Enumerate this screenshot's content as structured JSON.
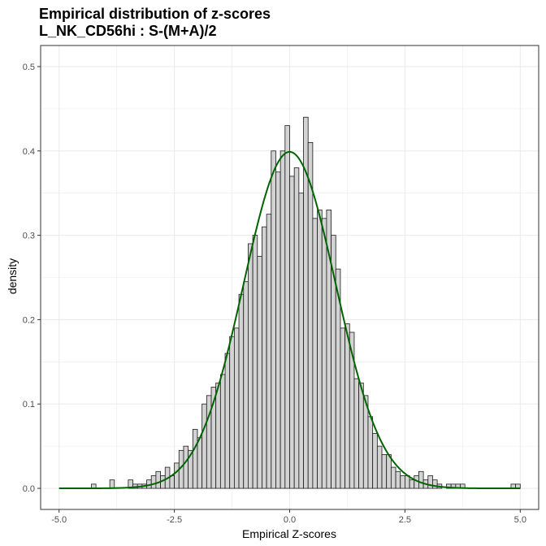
{
  "chart_data": {
    "type": "bar",
    "title": "Empirical distribution of z-scores",
    "subtitle": "L_NK_CD56hi : S-(M+A)/2",
    "xlabel": "Empirical Z-scores",
    "ylabel": "density",
    "xlim": [
      -5.4,
      5.4
    ],
    "ylim": [
      -0.025,
      0.525
    ],
    "x_ticks": [
      -5.0,
      -2.5,
      0.0,
      2.5,
      5.0
    ],
    "x_tick_labels": [
      "-5.0",
      "-2.5",
      "0.0",
      "2.5",
      "5.0"
    ],
    "y_ticks": [
      0.0,
      0.1,
      0.2,
      0.3,
      0.4,
      0.5
    ],
    "y_tick_labels": [
      "0.0",
      "0.1",
      "0.2",
      "0.3",
      "0.4",
      "0.5"
    ],
    "grid": true,
    "bin_width": 0.1,
    "histogram": {
      "bin_starts": [
        -5.0,
        -4.9,
        -4.8,
        -4.7,
        -4.6,
        -4.5,
        -4.4,
        -4.3,
        -4.2,
        -4.1,
        -4.0,
        -3.9,
        -3.8,
        -3.7,
        -3.6,
        -3.5,
        -3.4,
        -3.3,
        -3.2,
        -3.1,
        -3.0,
        -2.9,
        -2.8,
        -2.7,
        -2.6,
        -2.5,
        -2.4,
        -2.3,
        -2.2,
        -2.1,
        -2.0,
        -1.9,
        -1.8,
        -1.7,
        -1.6,
        -1.5,
        -1.4,
        -1.3,
        -1.2,
        -1.1,
        -1.0,
        -0.9,
        -0.8,
        -0.7,
        -0.6,
        -0.5,
        -0.4,
        -0.3,
        -0.2,
        -0.1,
        0.0,
        0.1,
        0.2,
        0.3,
        0.4,
        0.5,
        0.6,
        0.7,
        0.8,
        0.9,
        1.0,
        1.1,
        1.2,
        1.3,
        1.4,
        1.5,
        1.6,
        1.7,
        1.8,
        1.9,
        2.0,
        2.1,
        2.2,
        2.3,
        2.4,
        2.5,
        2.6,
        2.7,
        2.8,
        2.9,
        3.0,
        3.1,
        3.2,
        3.3,
        3.4,
        3.5,
        3.6,
        3.7,
        3.8,
        3.9,
        4.0,
        4.1,
        4.2,
        4.3,
        4.4,
        4.5,
        4.6,
        4.7,
        4.8,
        4.9
      ],
      "density": [
        0,
        0,
        0,
        0,
        0,
        0,
        0,
        0.005,
        0,
        0,
        0,
        0.01,
        0,
        0,
        0,
        0.01,
        0.005,
        0.005,
        0.005,
        0.01,
        0.015,
        0.02,
        0.015,
        0.025,
        0.015,
        0.03,
        0.045,
        0.05,
        0.045,
        0.07,
        0.06,
        0.1,
        0.11,
        0.12,
        0.125,
        0.135,
        0.16,
        0.18,
        0.19,
        0.23,
        0.245,
        0.29,
        0.3,
        0.275,
        0.31,
        0.325,
        0.4,
        0.375,
        0.4,
        0.43,
        0.37,
        0.38,
        0.35,
        0.44,
        0.41,
        0.32,
        0.33,
        0.32,
        0.33,
        0.3,
        0.26,
        0.19,
        0.195,
        0.185,
        0.13,
        0.125,
        0.11,
        0.085,
        0.065,
        0.05,
        0.04,
        0.04,
        0.025,
        0.02,
        0.015,
        0.015,
        0.01,
        0.015,
        0.02,
        0.01,
        0.015,
        0.01,
        0.005,
        0,
        0.005,
        0.005,
        0.005,
        0.005,
        0,
        0,
        0,
        0,
        0,
        0,
        0,
        0,
        0,
        0,
        0.005,
        0.005
      ]
    },
    "series": [
      {
        "type": "line",
        "kind": "standard normal density",
        "x_range": [
          -5,
          5
        ],
        "color": "#006400"
      }
    ],
    "colors": {
      "bar_fill": "#d3d3d3",
      "bar_stroke": "#1a1a1a",
      "curve": "#006400",
      "grid": "#ebebeb",
      "panel_border": "#333333"
    }
  }
}
